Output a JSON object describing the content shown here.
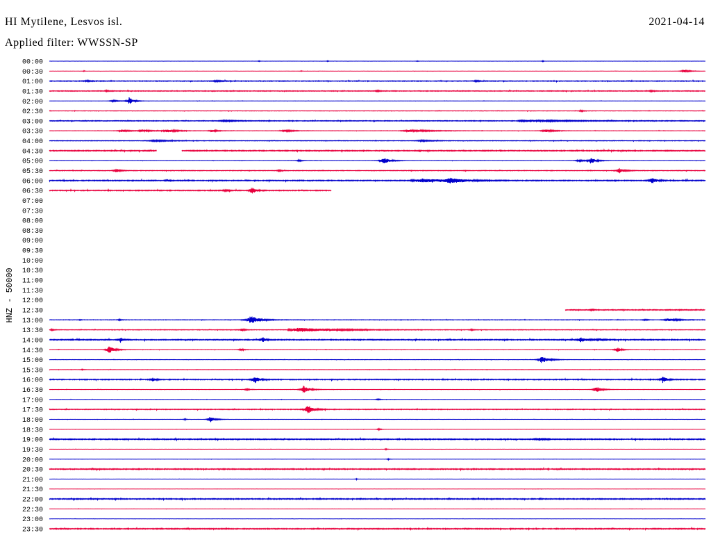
{
  "chart_data": {
    "type": "line",
    "title": "HI Mytilene, Lesvos isl.",
    "date": "2021-04-14",
    "subtitle": "Applied filter: WWSSN-SP",
    "ylabel": "HNZ - 50000",
    "scale_counts": 50000,
    "colors": {
      "hour": "#0000cc",
      "half_hour": "#e8003d"
    },
    "rows": [
      {
        "time": "00:00",
        "noise": 300,
        "events": [
          [
            9.59,
            4000,
            0.05
          ],
          [
            12.73,
            3000,
            0.05
          ],
          [
            16.83,
            3000,
            0.05
          ],
          [
            22.57,
            3500,
            0.05
          ]
        ]
      },
      {
        "time": "00:30",
        "noise": 500,
        "events": [
          [
            1.59,
            2500,
            0.05
          ],
          [
            11.52,
            2500,
            0.05
          ],
          [
            29.0,
            6500,
            0.6
          ]
        ]
      },
      {
        "time": "01:00",
        "noise": 1700,
        "events": [
          [
            1.7,
            3500,
            0.4
          ],
          [
            7.6,
            3500,
            0.5
          ],
          [
            19.5,
            3000,
            0.4
          ]
        ]
      },
      {
        "time": "01:30",
        "noise": 1600,
        "events": [
          [
            2.6,
            3000,
            0.3
          ],
          [
            15.0,
            3000,
            0.3
          ],
          [
            27.5,
            3000,
            0.3
          ]
        ]
      },
      {
        "time": "02:00",
        "noise": 600,
        "events": [
          [
            2.9,
            5000,
            0.5
          ],
          [
            3.65,
            18000,
            0.4
          ]
        ]
      },
      {
        "time": "02:30",
        "noise": 900,
        "events": [
          [
            24.3,
            5000,
            0.2
          ]
        ]
      },
      {
        "time": "03:00",
        "noise": 1700,
        "events": [
          [
            8.0,
            3500,
            1.0
          ],
          [
            21.9,
            4500,
            3.5
          ]
        ]
      },
      {
        "time": "03:30",
        "noise": 900,
        "events": [
          [
            3.3,
            7000,
            0.6
          ],
          [
            4.25,
            7000,
            0.7
          ],
          [
            5.37,
            7000,
            1.0
          ],
          [
            7.43,
            6000,
            0.5
          ],
          [
            10.76,
            6000,
            0.7
          ],
          [
            16.48,
            6000,
            1.9
          ],
          [
            22.67,
            7000,
            0.8
          ]
        ]
      },
      {
        "time": "04:00",
        "noise": 1200,
        "events": [
          [
            4.8,
            3500,
            1.5
          ],
          [
            17.0,
            3500,
            1.0
          ]
        ]
      },
      {
        "time": "04:30",
        "noise": 2200,
        "gaps": [
          [
            4.92,
            6.06
          ]
        ]
      },
      {
        "time": "05:00",
        "noise": 700,
        "events": [
          [
            11.4,
            4000,
            0.3
          ],
          [
            15.25,
            17000,
            0.6
          ],
          [
            24.2,
            5000,
            0.6
          ],
          [
            24.75,
            14000,
            0.5
          ]
        ]
      },
      {
        "time": "05:30",
        "noise": 1400,
        "events": [
          [
            3.05,
            10000,
            0.3
          ],
          [
            10.5,
            4000,
            0.2
          ],
          [
            26.05,
            14000,
            0.4
          ]
        ]
      },
      {
        "time": "06:00",
        "noise": 2200,
        "events": [
          [
            5.4,
            5000,
            0.2
          ],
          [
            17.0,
            9000,
            2.3
          ],
          [
            18.3,
            13000,
            1.2
          ],
          [
            27.55,
            17000,
            0.4
          ]
        ]
      },
      {
        "time": "06:30",
        "noise": 2000,
        "span": [
          0,
          12.89
        ],
        "events": [
          [
            8.0,
            4000,
            0.4
          ],
          [
            9.25,
            18000,
            0.35
          ]
        ]
      },
      {
        "time": "07:00",
        "span": null
      },
      {
        "time": "07:30",
        "span": null
      },
      {
        "time": "08:00",
        "span": null
      },
      {
        "time": "08:30",
        "span": null
      },
      {
        "time": "09:00",
        "span": null
      },
      {
        "time": "09:30",
        "span": null
      },
      {
        "time": "10:00",
        "span": null
      },
      {
        "time": "10:30",
        "span": null
      },
      {
        "time": "11:00",
        "span": null
      },
      {
        "time": "11:30",
        "span": null
      },
      {
        "time": "12:00",
        "span": null
      },
      {
        "time": "12:30",
        "noise": 2000,
        "span": [
          23.59,
          30
        ],
        "events": [
          [
            24.8,
            6000,
            0.1
          ]
        ]
      },
      {
        "time": "13:00",
        "noise": 1200,
        "events": [
          [
            1.4,
            2000,
            0.1
          ],
          [
            3.2,
            3000,
            0.2
          ],
          [
            9.2,
            21000,
            0.8
          ],
          [
            27.2,
            3000,
            0.3
          ],
          [
            28.3,
            8000,
            0.9
          ]
        ]
      },
      {
        "time": "13:30",
        "noise": 1200,
        "events": [
          [
            0.1,
            4000,
            0.2
          ],
          [
            8.8,
            5000,
            0.3
          ],
          [
            11.4,
            10000,
            3.5
          ],
          [
            19.3,
            4000,
            0.2
          ]
        ]
      },
      {
        "time": "14:00",
        "noise": 2200,
        "events": [
          [
            3.25,
            14000,
            0.2
          ],
          [
            9.75,
            14000,
            0.25
          ],
          [
            24.3,
            11000,
            0.6
          ],
          [
            25.2,
            6000,
            0.3
          ]
        ]
      },
      {
        "time": "14:30",
        "noise": 800,
        "events": [
          [
            2.72,
            18000,
            0.5
          ],
          [
            8.75,
            5000,
            0.3
          ],
          [
            25.95,
            14000,
            0.35
          ]
        ]
      },
      {
        "time": "15:00",
        "noise": 700,
        "events": [
          [
            22.5,
            18000,
            0.6
          ]
        ]
      },
      {
        "time": "15:30",
        "noise": 700,
        "events": [
          [
            1.5,
            2500,
            0.1
          ]
        ]
      },
      {
        "time": "16:00",
        "noise": 2000,
        "events": [
          [
            4.72,
            10000,
            0.25
          ],
          [
            9.38,
            21000,
            0.35
          ],
          [
            28.05,
            17000,
            0.35
          ]
        ]
      },
      {
        "time": "16:30",
        "noise": 700,
        "events": [
          [
            9.0,
            4000,
            0.3
          ],
          [
            11.62,
            20000,
            0.5
          ],
          [
            25.0,
            17000,
            0.45
          ]
        ]
      },
      {
        "time": "17:00",
        "noise": 700,
        "events": [
          [
            15.0,
            3000,
            0.3
          ]
        ]
      },
      {
        "time": "17:30",
        "noise": 1600,
        "events": [
          [
            11.8,
            24000,
            0.5
          ]
        ]
      },
      {
        "time": "18:00",
        "noise": 600,
        "events": [
          [
            6.2,
            4000,
            0.1
          ],
          [
            7.35,
            17000,
            0.4
          ]
        ]
      },
      {
        "time": "18:30",
        "noise": 500,
        "events": [
          [
            15.05,
            4000,
            0.2
          ]
        ]
      },
      {
        "time": "19:00",
        "noise": 2200,
        "events": [
          [
            22.4,
            7000,
            0.3
          ]
        ]
      },
      {
        "time": "19:30",
        "noise": 500,
        "events": [
          [
            15.4,
            4000,
            0.1
          ]
        ]
      },
      {
        "time": "20:00",
        "noise": 500,
        "events": [
          [
            15.5,
            4000,
            0.1
          ]
        ]
      },
      {
        "time": "20:30",
        "noise": 2200
      },
      {
        "time": "21:00",
        "noise": 400,
        "events": [
          [
            14.05,
            4000,
            0.05
          ]
        ]
      },
      {
        "time": "21:30",
        "noise": 500
      },
      {
        "time": "22:00",
        "noise": 2200
      },
      {
        "time": "22:30",
        "noise": 500
      },
      {
        "time": "23:00",
        "noise": 500
      },
      {
        "time": "23:30",
        "noise": 2200
      }
    ]
  }
}
